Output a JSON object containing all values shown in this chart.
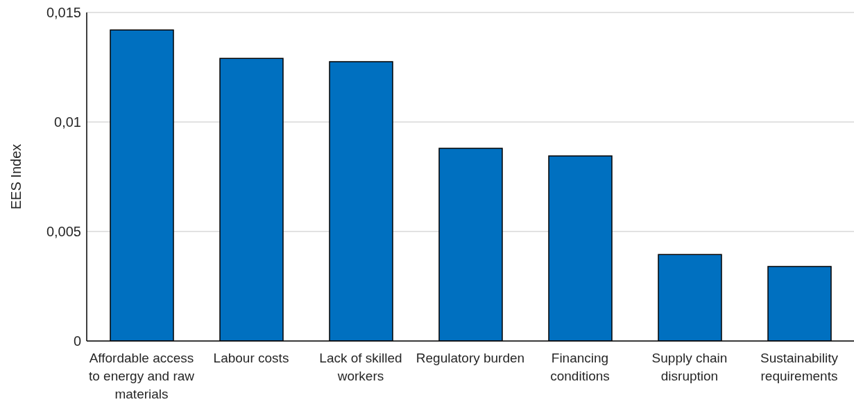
{
  "chart_data": {
    "type": "bar",
    "ylabel": "EES Index",
    "categories": [
      "Affordable access to energy and raw materials",
      "Labour costs",
      "Lack of skilled workers",
      "Regulatory burden",
      "Financing conditions",
      "Supply chain disruption",
      "Sustainability requirements"
    ],
    "values": [
      0.0142,
      0.0129,
      0.01275,
      0.0088,
      0.00845,
      0.00395,
      0.0034
    ],
    "color": "#0070c0",
    "ylim": [
      0,
      0.015
    ],
    "yticks": [
      0,
      {
        "value": 0.005,
        "label": "0,005"
      },
      {
        "value": 0.01,
        "label": "0,01"
      },
      {
        "value": 0.015,
        "label": "0,015"
      }
    ],
    "grid": "y"
  }
}
